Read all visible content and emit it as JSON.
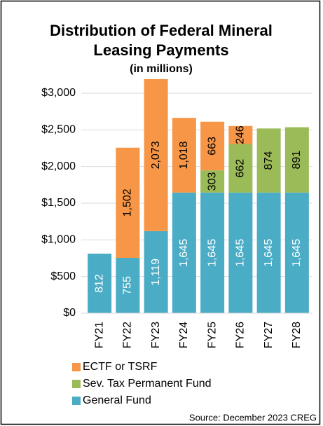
{
  "chart_data": {
    "type": "stacked_bar",
    "title": "Distribution of Federal Mineral Leasing Payments",
    "subtitle": "(in millions)",
    "categories": [
      "FY21",
      "FY22",
      "FY23",
      "FY24",
      "FY25",
      "FY26",
      "FY27",
      "FY28"
    ],
    "series": [
      {
        "name": "General Fund",
        "color": "#4bacc6",
        "values": [
          812,
          755,
          1119,
          1645,
          1645,
          1645,
          1645,
          1645
        ],
        "value_labels": [
          "812",
          "755",
          "1,119",
          "1,645",
          "1,645",
          "1,645",
          "1,645",
          "1,645"
        ]
      },
      {
        "name": "Sev. Tax Permanent Fund",
        "color": "#9bbb59",
        "values": [
          null,
          null,
          null,
          null,
          303,
          662,
          874,
          891
        ],
        "value_labels": [
          null,
          null,
          null,
          null,
          "303",
          "662",
          "874",
          "891"
        ]
      },
      {
        "name": "ECTF or TSRF",
        "color": "#f79646",
        "values": [
          null,
          1502,
          2073,
          1018,
          663,
          246,
          null,
          null
        ],
        "value_labels": [
          null,
          "1,502",
          "2,073",
          "1,018",
          "663",
          "246",
          null,
          null
        ]
      }
    ],
    "ylim": [
      0,
      3000
    ],
    "yticks": [
      {
        "value": 0,
        "label": "$0"
      },
      {
        "value": 500,
        "label": "$500"
      },
      {
        "value": 1000,
        "label": "$1,000"
      },
      {
        "value": 1500,
        "label": "$1,500"
      },
      {
        "value": 2000,
        "label": "$2,000"
      },
      {
        "value": 2500,
        "label": "$2,500"
      },
      {
        "value": 3000,
        "label": "$3,000"
      }
    ],
    "grid": true,
    "legend": "bottom",
    "source": "Source: December 2023 CREG"
  }
}
